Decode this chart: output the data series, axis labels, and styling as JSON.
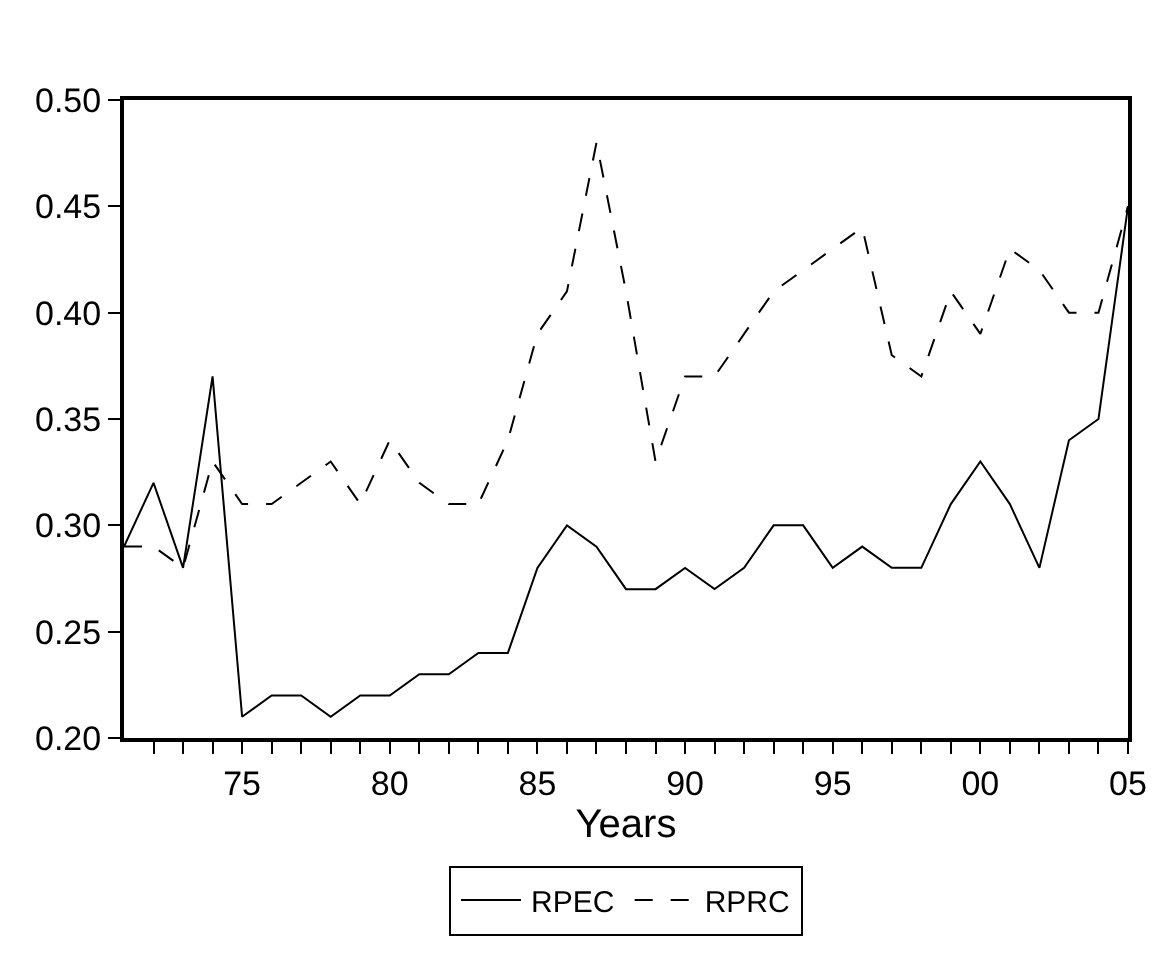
{
  "chart_data": {
    "type": "line",
    "xlabel": "Years",
    "x": [
      1971,
      1972,
      1973,
      1974,
      1975,
      1976,
      1977,
      1978,
      1979,
      1980,
      1981,
      1982,
      1983,
      1984,
      1985,
      1986,
      1987,
      1988,
      1989,
      1990,
      1991,
      1992,
      1993,
      1994,
      1995,
      1996,
      1997,
      1998,
      1999,
      2000,
      2001,
      2002,
      2003,
      2004,
      2005
    ],
    "series": [
      {
        "name": "RPEC",
        "color": "#000000",
        "line_style": "solid",
        "values": [
          0.29,
          0.32,
          0.28,
          0.37,
          0.21,
          0.22,
          0.22,
          0.21,
          0.22,
          0.22,
          0.23,
          0.23,
          0.24,
          0.24,
          0.28,
          0.3,
          0.29,
          0.27,
          0.27,
          0.28,
          0.27,
          0.28,
          0.3,
          0.3,
          0.28,
          0.29,
          0.28,
          0.28,
          0.31,
          0.33,
          0.31,
          0.28,
          0.34,
          0.35,
          0.45
        ]
      },
      {
        "name": "RPRC",
        "color": "#000000",
        "line_style": "dashed",
        "values": [
          0.29,
          0.29,
          0.28,
          0.33,
          0.31,
          0.31,
          0.32,
          0.33,
          0.31,
          0.34,
          0.32,
          0.31,
          0.31,
          0.34,
          0.39,
          0.41,
          0.48,
          0.41,
          0.33,
          0.37,
          0.37,
          0.39,
          0.41,
          0.42,
          0.43,
          0.44,
          0.38,
          0.37,
          0.41,
          0.39,
          0.43,
          0.42,
          0.4,
          0.4,
          0.45
        ]
      }
    ],
    "xlim": [
      1971,
      2005
    ],
    "xticks": [
      {
        "value": 1972,
        "label": null
      },
      {
        "value": 1973,
        "label": null
      },
      {
        "value": 1974,
        "label": null
      },
      {
        "value": 1975,
        "label": "75"
      },
      {
        "value": 1976,
        "label": null
      },
      {
        "value": 1977,
        "label": null
      },
      {
        "value": 1978,
        "label": null
      },
      {
        "value": 1979,
        "label": null
      },
      {
        "value": 1980,
        "label": "80"
      },
      {
        "value": 1981,
        "label": null
      },
      {
        "value": 1982,
        "label": null
      },
      {
        "value": 1983,
        "label": null
      },
      {
        "value": 1984,
        "label": null
      },
      {
        "value": 1985,
        "label": "85"
      },
      {
        "value": 1986,
        "label": null
      },
      {
        "value": 1987,
        "label": null
      },
      {
        "value": 1988,
        "label": null
      },
      {
        "value": 1989,
        "label": null
      },
      {
        "value": 1990,
        "label": "90"
      },
      {
        "value": 1991,
        "label": null
      },
      {
        "value": 1992,
        "label": null
      },
      {
        "value": 1993,
        "label": null
      },
      {
        "value": 1994,
        "label": null
      },
      {
        "value": 1995,
        "label": "95"
      },
      {
        "value": 1996,
        "label": null
      },
      {
        "value": 1997,
        "label": null
      },
      {
        "value": 1998,
        "label": null
      },
      {
        "value": 1999,
        "label": null
      },
      {
        "value": 2000,
        "label": "00"
      },
      {
        "value": 2001,
        "label": null
      },
      {
        "value": 2002,
        "label": null
      },
      {
        "value": 2003,
        "label": null
      },
      {
        "value": 2004,
        "label": null
      },
      {
        "value": 2005,
        "label": "05"
      }
    ],
    "ylim": [
      0.2,
      0.5
    ],
    "yticks": [
      {
        "value": 0.2,
        "label": "0.20"
      },
      {
        "value": 0.25,
        "label": "0.25"
      },
      {
        "value": 0.3,
        "label": "0.30"
      },
      {
        "value": 0.35,
        "label": "0.35"
      },
      {
        "value": 0.4,
        "label": "0.40"
      },
      {
        "value": 0.45,
        "label": "0.45"
      },
      {
        "value": 0.5,
        "label": "0.50"
      }
    ],
    "grid": false,
    "legend": "bottom",
    "marker": "none"
  }
}
